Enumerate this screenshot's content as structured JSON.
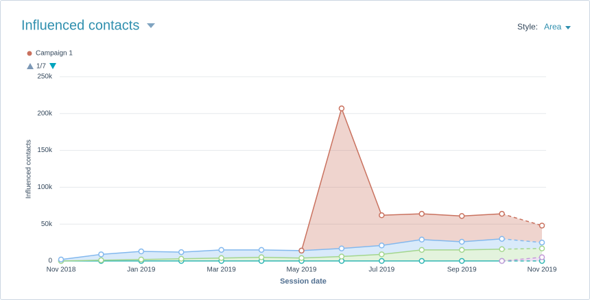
{
  "chart_data": {
    "type": "area",
    "stacked": true,
    "title": "Influenced contacts",
    "style_label": "Style:",
    "style_value": "Area",
    "legend_page": "1/7",
    "x_label": "Session date",
    "y_label": "Influenced contacts",
    "categories": [
      "Nov 2018",
      null,
      "Jan 2019",
      null,
      "Mar 2019",
      null,
      "May 2019",
      null,
      "Jul 2019",
      null,
      "Sep 2019",
      null,
      "Nov 2019"
    ],
    "ylim": [
      0,
      250000
    ],
    "yticks": [
      0,
      {
        "value": 50000,
        "label": "50k"
      },
      {
        "value": 100000,
        "label": "100k"
      },
      {
        "value": 150000,
        "label": "150k"
      },
      {
        "value": 200000,
        "label": "200k"
      },
      {
        "value": 250000,
        "label": "250k"
      }
    ],
    "grid": true,
    "dashed_last_period": true,
    "series": [
      {
        "color": "#2fb5b3",
        "values": [
          0,
          0,
          0,
          0,
          0,
          0,
          0,
          0,
          0,
          0,
          0,
          0,
          0
        ]
      },
      {
        "color": "#c49ad8",
        "values": [
          null,
          null,
          null,
          null,
          null,
          null,
          null,
          null,
          null,
          null,
          null,
          0,
          5000
        ]
      },
      {
        "color": "#a3d68d",
        "values": [
          0,
          1000,
          2000,
          3000,
          4000,
          5000,
          4000,
          6000,
          9000,
          15000,
          15000,
          16000,
          12000
        ]
      },
      {
        "color": "#82b8ee",
        "values": [
          2000,
          8000,
          11000,
          9000,
          11000,
          10000,
          10000,
          11000,
          12000,
          14000,
          11000,
          14000,
          8000
        ]
      },
      {
        "name": "Campaign 1",
        "color": "#c9715e",
        "values": [
          null,
          null,
          null,
          null,
          null,
          null,
          0,
          190000,
          41000,
          35000,
          35000,
          34000,
          23000
        ]
      }
    ]
  }
}
